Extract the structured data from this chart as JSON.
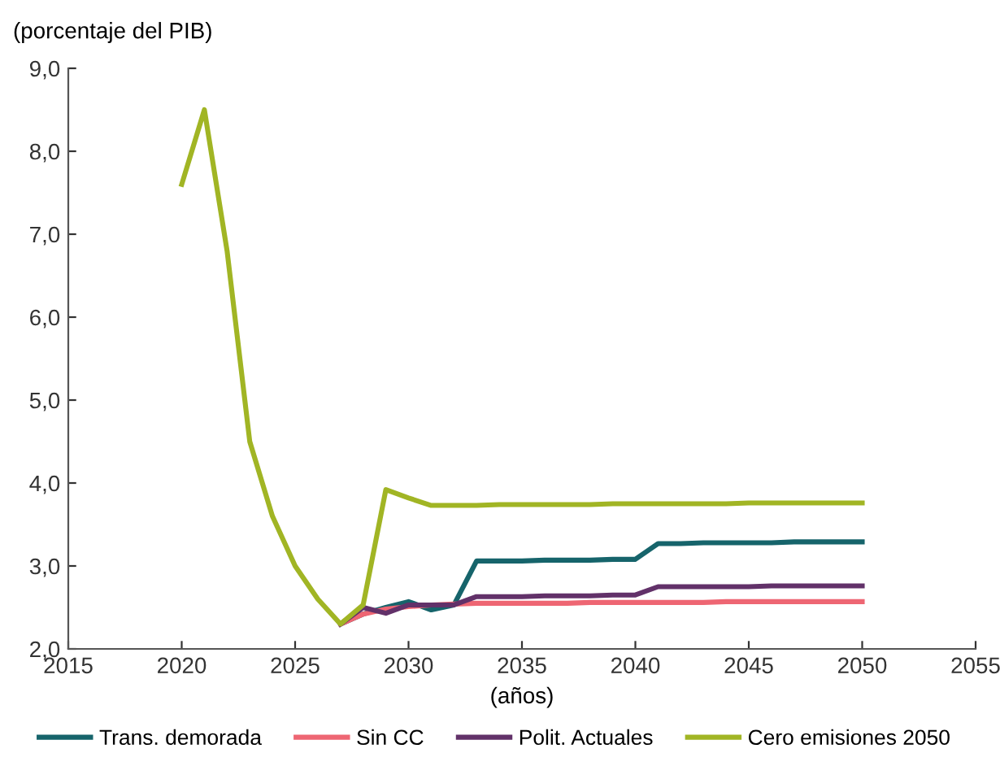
{
  "chart_data": {
    "type": "line",
    "ylabel": "(porcentaje del PIB)",
    "xlabel": "(años)",
    "x": [
      2020,
      2021,
      2022,
      2023,
      2024,
      2025,
      2026,
      2027,
      2028,
      2029,
      2030,
      2031,
      2032,
      2033,
      2034,
      2035,
      2036,
      2037,
      2038,
      2039,
      2040,
      2041,
      2042,
      2043,
      2044,
      2045,
      2046,
      2047,
      2048,
      2049,
      2050
    ],
    "series": [
      {
        "name": "Trans. demorada",
        "color": "#16646b",
        "values": [
          null,
          null,
          null,
          null,
          null,
          null,
          null,
          2.3,
          2.42,
          2.5,
          2.57,
          2.47,
          2.53,
          3.06,
          3.06,
          3.06,
          3.07,
          3.07,
          3.07,
          3.08,
          3.08,
          3.27,
          3.27,
          3.28,
          3.28,
          3.28,
          3.28,
          3.29,
          3.29,
          3.29,
          3.29
        ]
      },
      {
        "name": "Sin CC",
        "color": "#ee6673",
        "values": [
          null,
          null,
          null,
          null,
          null,
          null,
          null,
          2.3,
          2.42,
          2.48,
          2.51,
          2.53,
          2.54,
          2.55,
          2.55,
          2.55,
          2.55,
          2.55,
          2.56,
          2.56,
          2.56,
          2.56,
          2.56,
          2.56,
          2.57,
          2.57,
          2.57,
          2.57,
          2.57,
          2.57,
          2.57
        ]
      },
      {
        "name": "Polit. Actuales",
        "color": "#623169",
        "values": [
          null,
          null,
          null,
          null,
          null,
          null,
          null,
          2.3,
          2.5,
          2.43,
          2.53,
          2.53,
          2.53,
          2.63,
          2.63,
          2.63,
          2.64,
          2.64,
          2.64,
          2.65,
          2.65,
          2.75,
          2.75,
          2.75,
          2.75,
          2.75,
          2.76,
          2.76,
          2.76,
          2.76,
          2.76
        ]
      },
      {
        "name": "Cero emisiones 2050",
        "color": "#a1b524",
        "values": [
          7.6,
          8.5,
          6.8,
          4.5,
          3.6,
          3.0,
          2.6,
          2.3,
          2.53,
          3.92,
          3.82,
          3.73,
          3.73,
          3.73,
          3.74,
          3.74,
          3.74,
          3.74,
          3.74,
          3.75,
          3.75,
          3.75,
          3.75,
          3.75,
          3.75,
          3.76,
          3.76,
          3.76,
          3.76,
          3.76,
          3.76
        ]
      }
    ],
    "xlim": [
      2015,
      2055
    ],
    "xticks": [
      2015,
      2020,
      2025,
      2030,
      2035,
      2040,
      2045,
      2050,
      2055
    ],
    "ylim": [
      2.0,
      9.0
    ],
    "yticks": [
      {
        "value": 2,
        "label": "2,0"
      },
      {
        "value": 3,
        "label": "3,0"
      },
      {
        "value": 4,
        "label": "4,0"
      },
      {
        "value": 5,
        "label": "5,0"
      },
      {
        "value": 6,
        "label": "6,0"
      },
      {
        "value": 7,
        "label": "7,0"
      },
      {
        "value": 8,
        "label": "8,0"
      },
      {
        "value": 9,
        "label": "9,0"
      }
    ],
    "grid": false,
    "legend": "bottom",
    "marker": "none",
    "line_style": "solid"
  }
}
